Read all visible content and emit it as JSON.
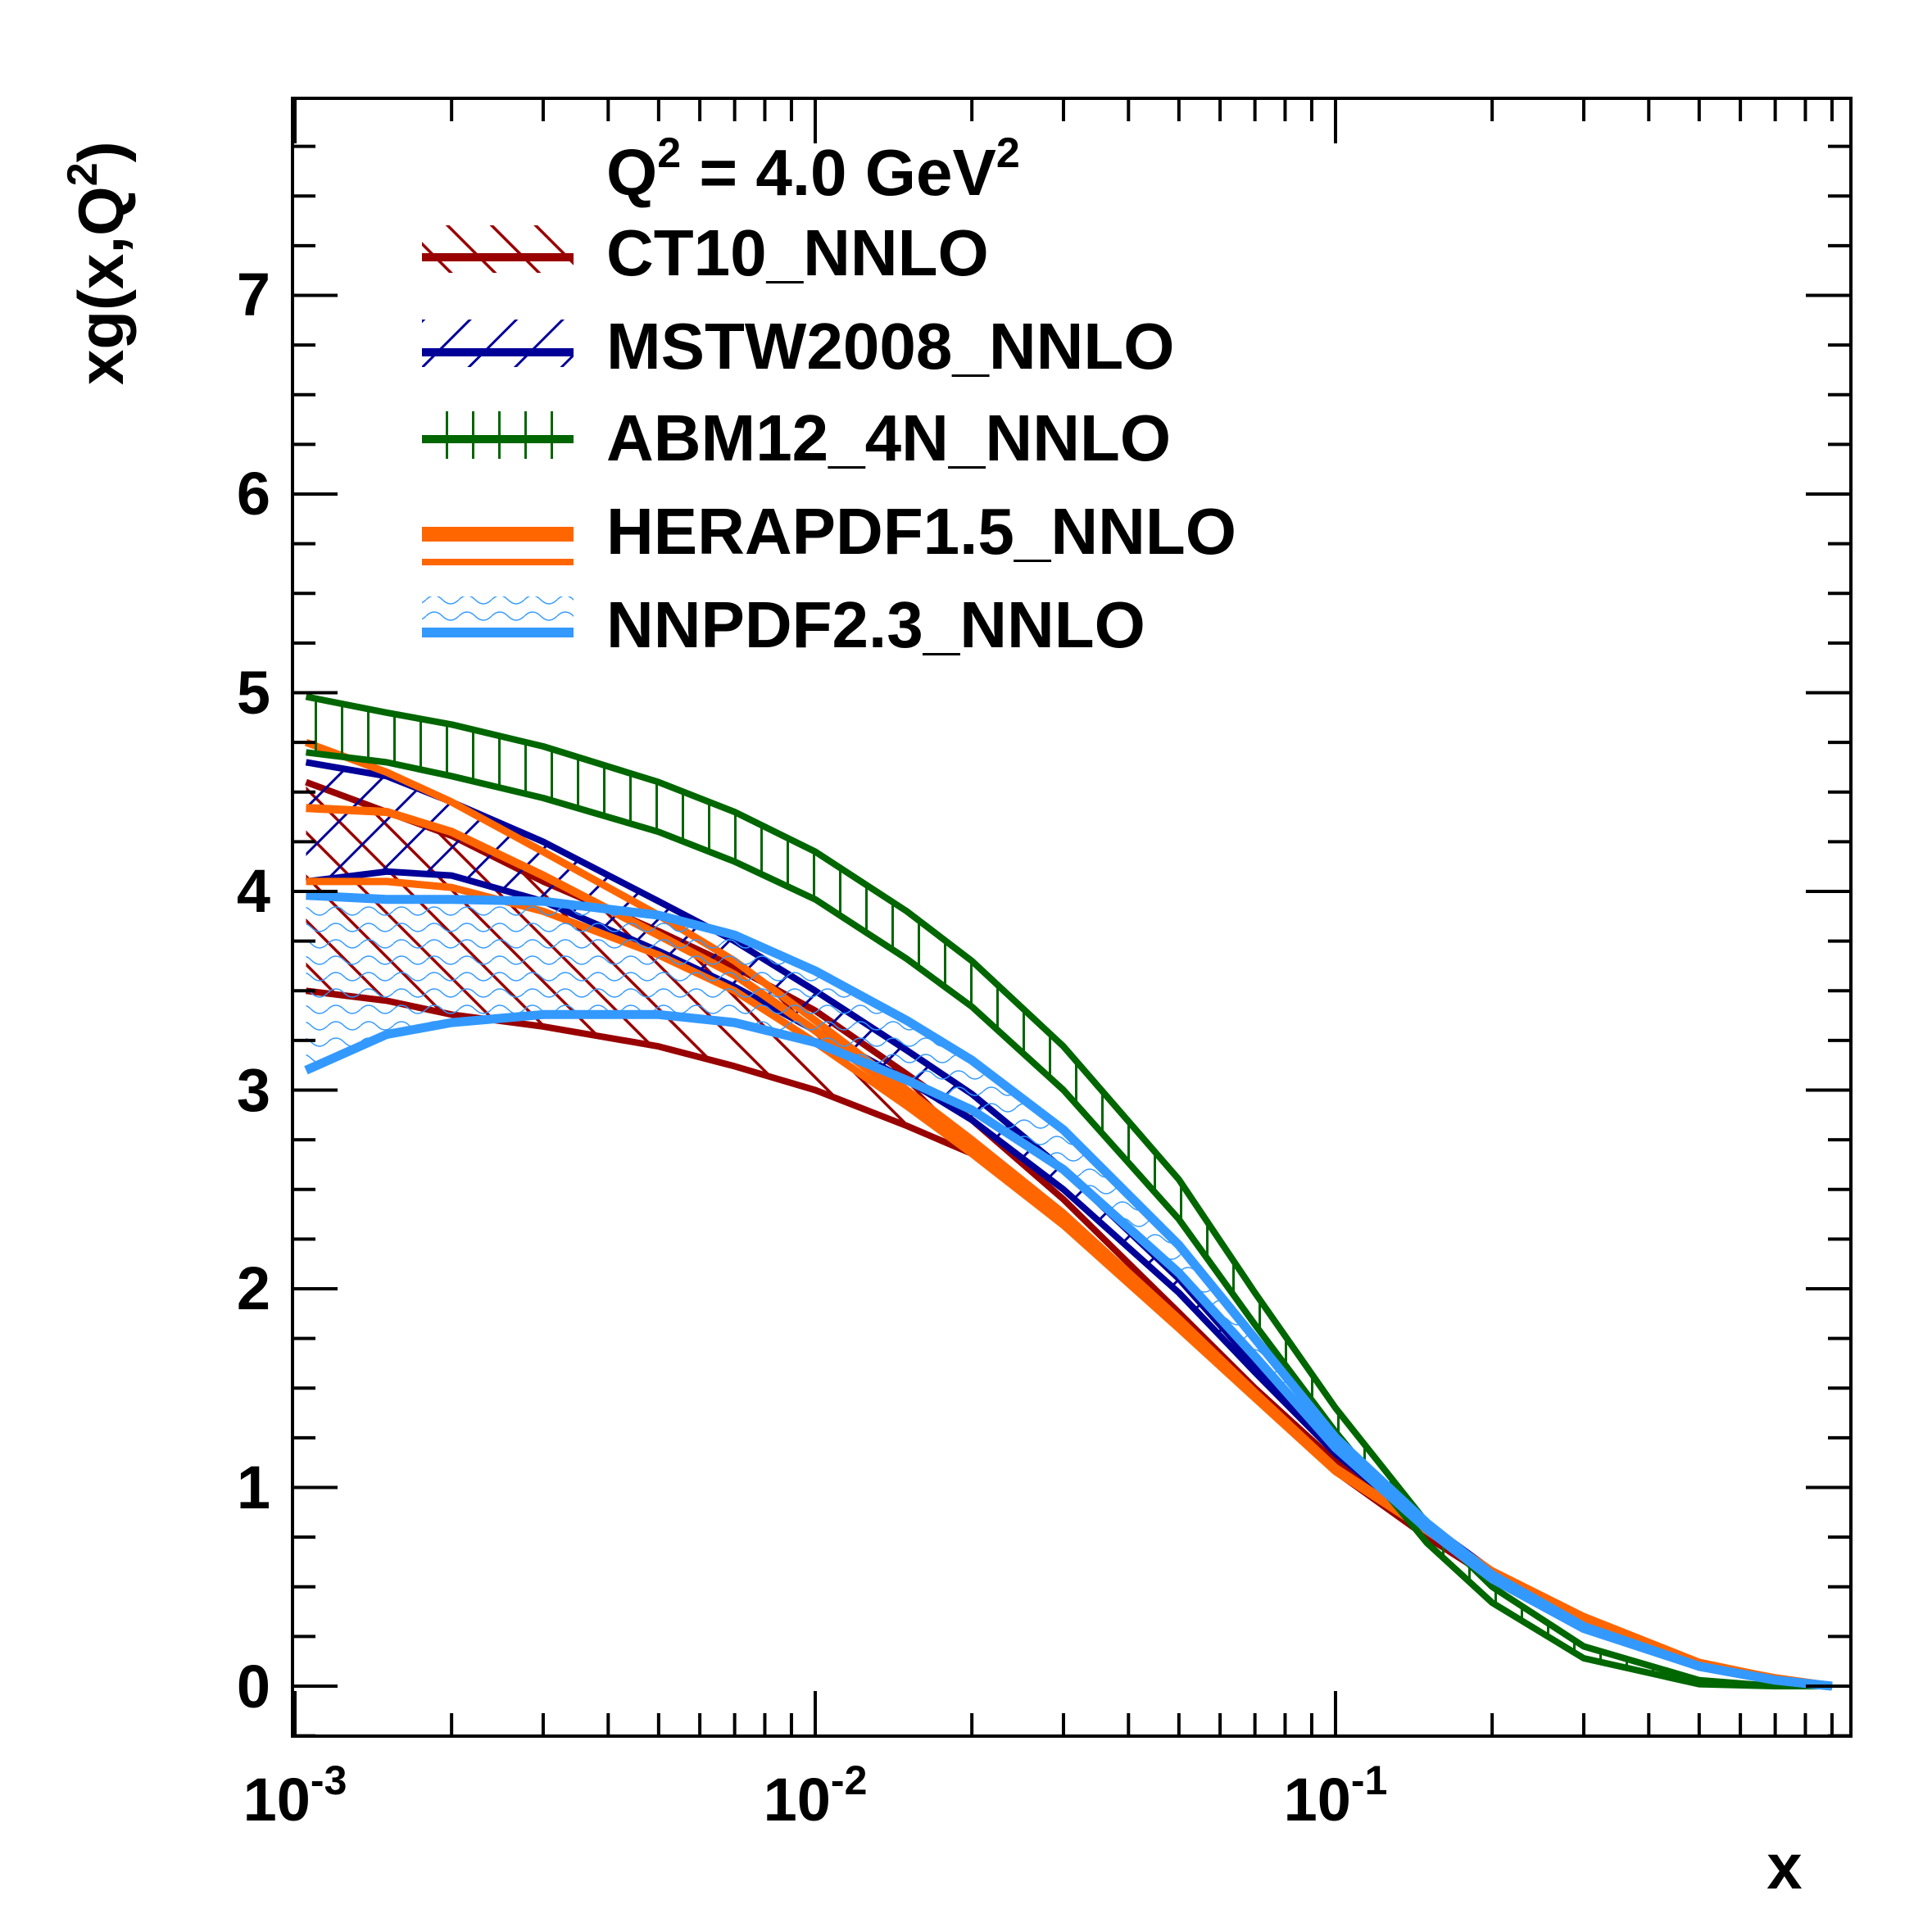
{
  "chart_data": {
    "type": "line",
    "title": "Q2 = 4.0 GeV2",
    "title_parts": {
      "q": "Q",
      "q_exp": "2",
      "mid": " = 4.0 GeV",
      "gev_exp": "2"
    },
    "xlabel": "x",
    "ylabel": "xg(x,Q2)",
    "ylabel_parts": {
      "base": "xg(x,Q",
      "exp": "2",
      "close": ")"
    },
    "xscale": "log",
    "xlim": [
      0.001,
      1
    ],
    "ylim": [
      -0.25,
      8.0
    ],
    "x_tick_labels": [
      {
        "value": 0.001,
        "base": "10",
        "exp": "-3"
      },
      {
        "value": 0.01,
        "base": "10",
        "exp": "-2"
      },
      {
        "value": 0.1,
        "base": "10",
        "exp": "-1"
      }
    ],
    "y_ticks": [
      0,
      1,
      2,
      3,
      4,
      5,
      6,
      7
    ],
    "y_tick_labels": [
      "0",
      "1",
      "2",
      "3",
      "4",
      "5",
      "6",
      "7"
    ],
    "grid": false,
    "legend_position": "top-left",
    "x": [
      0.00105,
      0.0015,
      0.002,
      0.003,
      0.005,
      0.007,
      0.01,
      0.015,
      0.02,
      0.03,
      0.05,
      0.07,
      0.1,
      0.15,
      0.2,
      0.3,
      0.5,
      0.7,
      0.9
    ],
    "series": [
      {
        "name": "CT10_NNLO",
        "color": "#990000",
        "style": "hatch-diagonal",
        "upper": [
          4.55,
          4.4,
          4.28,
          4.05,
          3.8,
          3.62,
          3.4,
          3.08,
          2.85,
          2.45,
          1.88,
          1.5,
          1.13,
          0.78,
          0.55,
          0.3,
          0.1,
          0.03,
          0.0
        ],
        "lower": [
          3.5,
          3.45,
          3.38,
          3.32,
          3.22,
          3.12,
          3.0,
          2.82,
          2.68,
          2.38,
          1.82,
          1.45,
          1.08,
          0.75,
          0.54,
          0.3,
          0.1,
          0.03,
          0.0
        ],
        "central": [
          4.0,
          3.95,
          3.85,
          3.7,
          3.5,
          3.37,
          3.2,
          2.95,
          2.77,
          2.42,
          1.85,
          1.47,
          1.1,
          0.77,
          0.55,
          0.3,
          0.1,
          0.03,
          0.0
        ]
      },
      {
        "name": "MSTW2008_NNLO",
        "color": "#000099",
        "style": "hatch-crossed",
        "upper": [
          4.65,
          4.58,
          4.45,
          4.25,
          3.95,
          3.75,
          3.5,
          3.2,
          2.98,
          2.6,
          2.05,
          1.62,
          1.2,
          0.82,
          0.58,
          0.32,
          0.1,
          0.03,
          0.0
        ],
        "lower": [
          4.05,
          4.1,
          4.08,
          3.95,
          3.7,
          3.52,
          3.3,
          3.05,
          2.85,
          2.5,
          1.98,
          1.58,
          1.17,
          0.8,
          0.56,
          0.31,
          0.1,
          0.03,
          0.0
        ],
        "central": [
          4.35,
          4.35,
          4.27,
          4.1,
          3.82,
          3.63,
          3.4,
          3.12,
          2.92,
          2.55,
          2.01,
          1.6,
          1.18,
          0.81,
          0.57,
          0.31,
          0.1,
          0.03,
          0.0
        ]
      },
      {
        "name": "ABM12_4N_NNLO",
        "color": "#006600",
        "style": "hatch-vertical",
        "upper": [
          4.98,
          4.9,
          4.84,
          4.73,
          4.55,
          4.4,
          4.2,
          3.9,
          3.65,
          3.22,
          2.55,
          1.98,
          1.4,
          0.82,
          0.5,
          0.2,
          0.03,
          0.0,
          0.0
        ],
        "lower": [
          4.7,
          4.65,
          4.58,
          4.47,
          4.3,
          4.15,
          3.96,
          3.66,
          3.42,
          3.0,
          2.35,
          1.82,
          1.28,
          0.72,
          0.42,
          0.14,
          0.01,
          0.0,
          0.0
        ],
        "central": [
          4.84,
          4.78,
          4.71,
          4.6,
          4.42,
          4.27,
          4.08,
          3.78,
          3.53,
          3.11,
          2.45,
          1.9,
          1.34,
          0.77,
          0.46,
          0.17,
          0.02,
          0.0,
          0.0
        ]
      },
      {
        "name": "HERAPDF1.5_NNLO",
        "color": "#ff6600",
        "style": "double-line",
        "upper": [
          4.75,
          4.6,
          4.45,
          4.2,
          3.88,
          3.65,
          3.35,
          3.0,
          2.75,
          2.38,
          1.85,
          1.48,
          1.1,
          0.8,
          0.58,
          0.35,
          0.12,
          0.04,
          0.0
        ],
        "lower": [
          4.05,
          4.05,
          4.02,
          3.9,
          3.68,
          3.5,
          3.24,
          2.92,
          2.68,
          2.32,
          1.8,
          1.45,
          1.08,
          0.78,
          0.56,
          0.33,
          0.11,
          0.04,
          0.0
        ],
        "central": [
          4.42,
          4.4,
          4.3,
          4.08,
          3.78,
          3.58,
          3.3,
          2.96,
          2.72,
          2.35,
          1.83,
          1.47,
          1.09,
          0.79,
          0.57,
          0.34,
          0.11,
          0.04,
          0.0
        ]
      },
      {
        "name": "NNPDF2.3_NNLO",
        "color": "#3399ff",
        "style": "double-line",
        "upper": [
          3.98,
          3.96,
          3.96,
          3.95,
          3.88,
          3.78,
          3.6,
          3.35,
          3.15,
          2.8,
          2.22,
          1.75,
          1.25,
          0.82,
          0.56,
          0.3,
          0.1,
          0.03,
          0.0
        ],
        "lower": [
          3.1,
          3.28,
          3.34,
          3.38,
          3.38,
          3.34,
          3.24,
          3.05,
          2.9,
          2.6,
          2.08,
          1.66,
          1.2,
          0.79,
          0.54,
          0.29,
          0.1,
          0.03,
          0.0
        ],
        "central": [
          3.55,
          3.62,
          3.65,
          3.66,
          3.63,
          3.56,
          3.42,
          3.2,
          3.02,
          2.7,
          2.15,
          1.7,
          1.22,
          0.8,
          0.55,
          0.3,
          0.1,
          0.03,
          0.0
        ]
      }
    ]
  }
}
